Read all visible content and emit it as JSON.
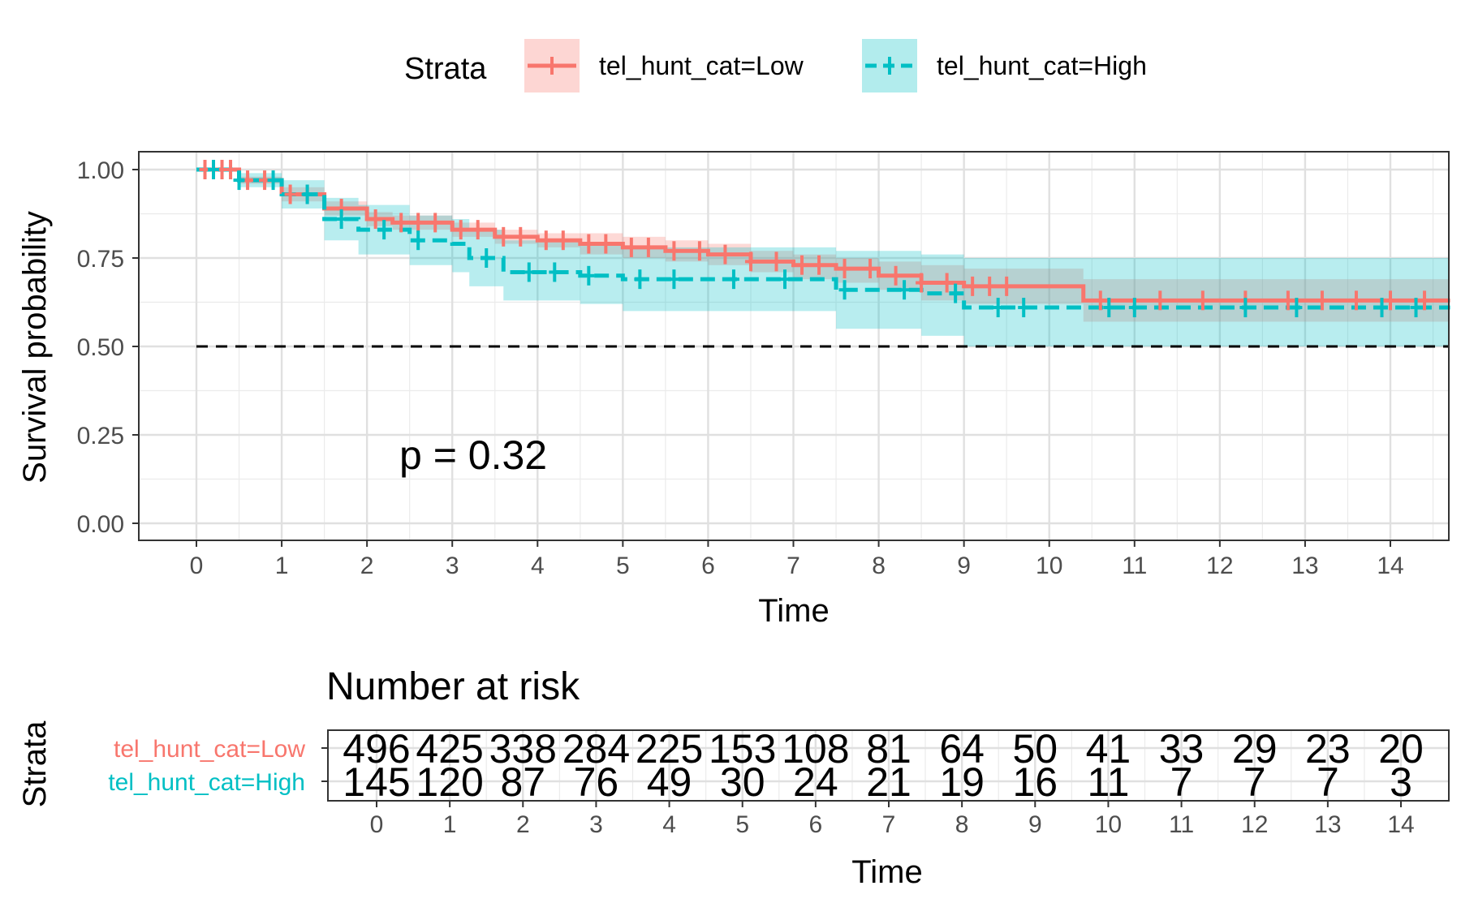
{
  "chart_data": [
    {
      "type": "line",
      "subtype": "kaplan-meier",
      "title": "",
      "xlabel": "Time",
      "ylabel": "Survival probability",
      "xlim": [
        0,
        14
      ],
      "ylim": [
        0,
        1
      ],
      "x_ticks": [
        "0",
        "1",
        "2",
        "3",
        "4",
        "5",
        "6",
        "7",
        "8",
        "9",
        "10",
        "11",
        "12",
        "13",
        "14"
      ],
      "y_ticks": [
        "0.00",
        "0.25",
        "0.50",
        "0.75",
        "1.00"
      ],
      "grid": true,
      "median_line": 0.5,
      "annotation": "p = 0.32",
      "legend": {
        "title": "Strata",
        "position": "top",
        "entries": [
          "tel_hunt_cat=Low",
          "tel_hunt_cat=High"
        ]
      },
      "series": [
        {
          "name": "tel_hunt_cat=Low",
          "color": "#F8766D",
          "line_style": "solid",
          "x": [
            0,
            0.5,
            1,
            1.5,
            2,
            2.3,
            3,
            3.5,
            4,
            4.5,
            5,
            5.5,
            6,
            6.5,
            7,
            7.5,
            8,
            8.5,
            9,
            10.2,
            10.4,
            11,
            12,
            13,
            14,
            14.7
          ],
          "y": [
            1.0,
            0.97,
            0.93,
            0.89,
            0.86,
            0.85,
            0.83,
            0.81,
            0.8,
            0.79,
            0.78,
            0.77,
            0.76,
            0.74,
            0.73,
            0.72,
            0.7,
            0.68,
            0.67,
            0.67,
            0.63,
            0.63,
            0.63,
            0.63,
            0.63,
            0.63
          ],
          "ci_lower": [
            1.0,
            0.96,
            0.91,
            0.87,
            0.84,
            0.83,
            0.81,
            0.79,
            0.78,
            0.76,
            0.75,
            0.74,
            0.73,
            0.71,
            0.69,
            0.68,
            0.66,
            0.63,
            0.62,
            0.62,
            0.57,
            0.57,
            0.57,
            0.57,
            0.57,
            0.57
          ],
          "ci_upper": [
            1.0,
            0.98,
            0.95,
            0.91,
            0.88,
            0.87,
            0.85,
            0.83,
            0.82,
            0.82,
            0.81,
            0.8,
            0.79,
            0.77,
            0.76,
            0.75,
            0.74,
            0.73,
            0.72,
            0.72,
            0.69,
            0.69,
            0.69,
            0.69,
            0.69,
            0.69
          ],
          "censor_times": [
            0.1,
            0.2,
            0.3,
            0.4,
            0.6,
            0.8,
            1.1,
            1.3,
            1.7,
            2.1,
            2.4,
            2.6,
            2.8,
            3.1,
            3.3,
            3.6,
            3.8,
            4.1,
            4.3,
            4.6,
            4.8,
            5.1,
            5.3,
            5.6,
            5.9,
            6.2,
            6.5,
            6.8,
            7.1,
            7.3,
            7.6,
            7.9,
            8.2,
            8.5,
            8.8,
            9.1,
            9.3,
            9.5,
            10.6,
            11.3,
            11.8,
            12.3,
            12.8,
            13.2,
            13.6,
            14.0,
            14.4
          ]
        },
        {
          "name": "tel_hunt_cat=High",
          "color": "#00BFC4",
          "line_style": "dashed",
          "x": [
            0,
            0.5,
            1,
            1.5,
            1.9,
            2.5,
            3,
            3.2,
            3.6,
            4.5,
            5,
            6,
            7,
            7.5,
            8,
            8.5,
            9,
            10,
            10.5,
            11,
            12,
            13,
            14,
            14.7
          ],
          "y": [
            1.0,
            0.97,
            0.93,
            0.86,
            0.83,
            0.8,
            0.79,
            0.75,
            0.71,
            0.7,
            0.69,
            0.69,
            0.69,
            0.66,
            0.66,
            0.65,
            0.61,
            0.61,
            0.61,
            0.61,
            0.61,
            0.61,
            0.61,
            0.61
          ],
          "ci_lower": [
            1.0,
            0.95,
            0.89,
            0.8,
            0.76,
            0.73,
            0.71,
            0.67,
            0.63,
            0.62,
            0.6,
            0.6,
            0.6,
            0.55,
            0.55,
            0.53,
            0.5,
            0.5,
            0.5,
            0.5,
            0.5,
            0.5,
            0.5,
            0.5
          ],
          "ci_upper": [
            1.0,
            0.99,
            0.97,
            0.92,
            0.9,
            0.87,
            0.86,
            0.83,
            0.8,
            0.79,
            0.78,
            0.78,
            0.78,
            0.77,
            0.77,
            0.76,
            0.75,
            0.75,
            0.75,
            0.75,
            0.75,
            0.75,
            0.75,
            0.75
          ],
          "censor_times": [
            0.2,
            0.5,
            0.9,
            1.3,
            1.7,
            2.2,
            2.6,
            3.4,
            3.9,
            4.2,
            4.6,
            5.2,
            5.6,
            6.3,
            6.9,
            7.6,
            8.3,
            8.9,
            9.4,
            9.7,
            10.7,
            11.0,
            12.3,
            12.9,
            13.9,
            14.3
          ]
        }
      ]
    },
    {
      "type": "table",
      "title": "Number at risk",
      "ylabel": "Strata",
      "xlabel": "Time",
      "times": [
        "0",
        "1",
        "2",
        "3",
        "4",
        "5",
        "6",
        "7",
        "8",
        "9",
        "10",
        "11",
        "12",
        "13",
        "14"
      ],
      "rows": [
        {
          "name": "tel_hunt_cat=Low",
          "color": "#F8766D",
          "values": [
            "496",
            "425",
            "338",
            "284",
            "225",
            "153",
            "108",
            "81",
            "64",
            "50",
            "41",
            "33",
            "29",
            "23",
            "20"
          ]
        },
        {
          "name": "tel_hunt_cat=High",
          "color": "#00BFC4",
          "values": [
            "145",
            "120",
            "87",
            "76",
            "49",
            "30",
            "24",
            "21",
            "19",
            "16",
            "11",
            "7",
            "7",
            "7",
            "3"
          ]
        }
      ]
    }
  ]
}
